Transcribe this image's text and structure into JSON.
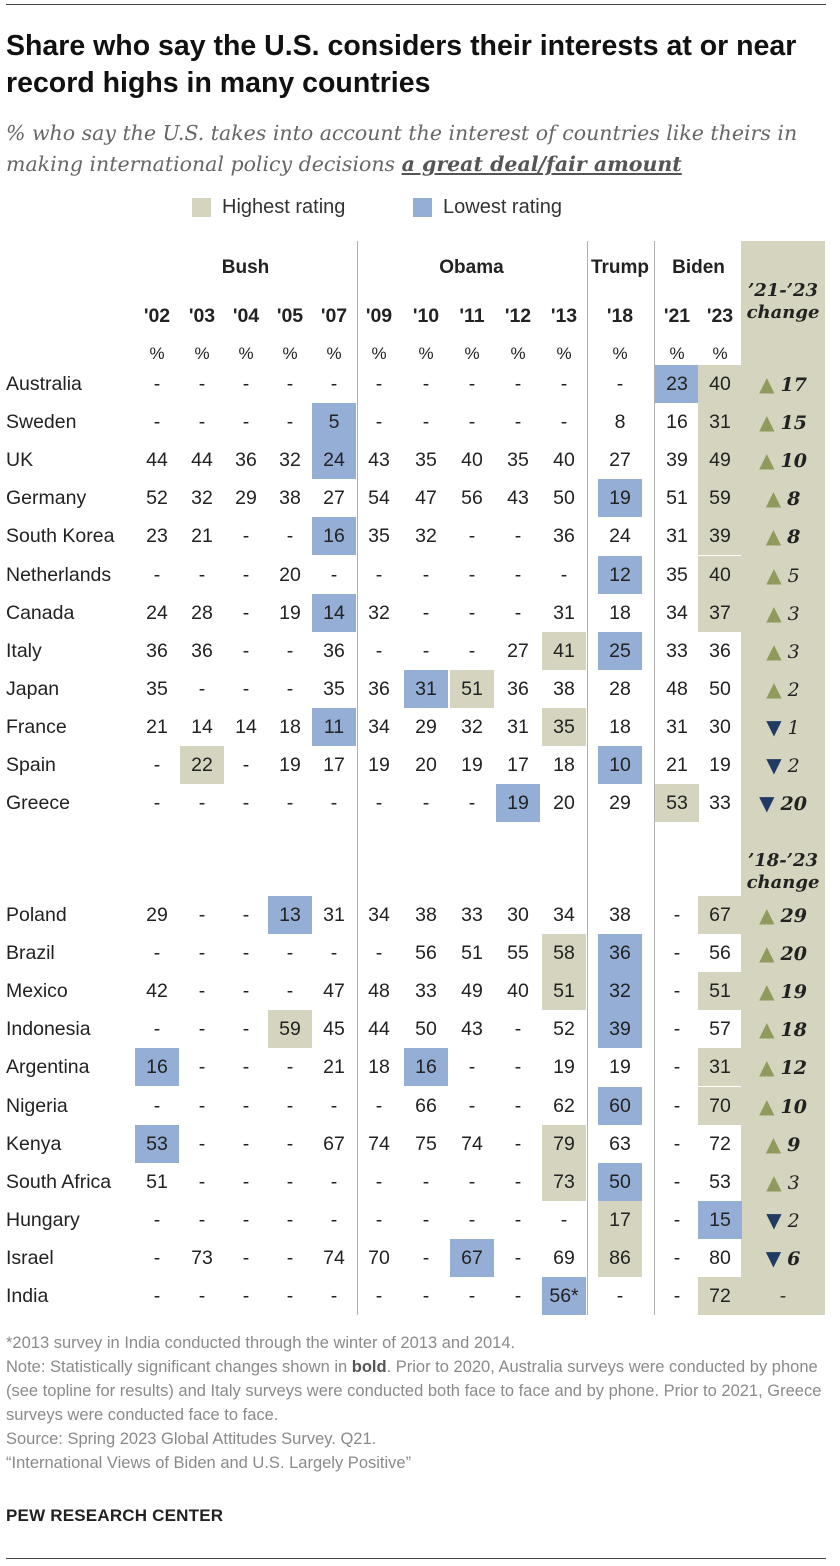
{
  "header": {
    "title": "Share who say the U.S. considers their interests at or near record highs in many countries",
    "subtitle_prefix": "% who say the U.S. takes into account the interest of countries like theirs in making international policy decisions ",
    "subtitle_emphasis": "a great deal/fair amount"
  },
  "legend": {
    "highest": "Highest rating",
    "lowest": "Lowest rating"
  },
  "colors": {
    "highest": "#d5d4bf",
    "lowest": "#94aed6",
    "change_column": "#d5d4bf",
    "triangle_up": "#8f9a5c",
    "triangle_down": "#1f3a63"
  },
  "chart_data": {
    "type": "table",
    "presidents": [
      {
        "name": "Bush",
        "years": [
          "'02",
          "'03",
          "'04",
          "'05",
          "'07"
        ]
      },
      {
        "name": "Obama",
        "years": [
          "'09",
          "'10",
          "'11",
          "'12",
          "'13"
        ]
      },
      {
        "name": "Trump",
        "years": [
          "'18"
        ]
      },
      {
        "name": "Biden",
        "years": [
          "'21",
          "'23"
        ]
      }
    ],
    "years": [
      "'02",
      "'03",
      "'04",
      "'05",
      "'07",
      "'09",
      "'10",
      "'11",
      "'12",
      "'13",
      "'18",
      "'21",
      "'23"
    ],
    "unit_label": "%",
    "change_headers": [
      "'21-'23 change",
      "'18-'23 change"
    ],
    "groups": [
      {
        "change_label": "'21-'23 change",
        "rows": [
          {
            "country": "Australia",
            "values": [
              "-",
              "-",
              "-",
              "-",
              "-",
              "-",
              "-",
              "-",
              "-",
              "-",
              "-",
              "23",
              "40"
            ],
            "highest": 12,
            "lowest": 11,
            "change": {
              "dir": "up",
              "value": "17",
              "significant": true
            }
          },
          {
            "country": "Sweden",
            "values": [
              "-",
              "-",
              "-",
              "-",
              "5",
              "-",
              "-",
              "-",
              "-",
              "-",
              "8",
              "16",
              "31"
            ],
            "highest": 12,
            "lowest": 4,
            "change": {
              "dir": "up",
              "value": "15",
              "significant": true
            }
          },
          {
            "country": "UK",
            "values": [
              "44",
              "44",
              "36",
              "32",
              "24",
              "43",
              "35",
              "40",
              "35",
              "40",
              "27",
              "39",
              "49"
            ],
            "highest": 12,
            "lowest": 4,
            "change": {
              "dir": "up",
              "value": "10",
              "significant": true
            }
          },
          {
            "country": "Germany",
            "values": [
              "52",
              "32",
              "29",
              "38",
              "27",
              "54",
              "47",
              "56",
              "43",
              "50",
              "19",
              "51",
              "59"
            ],
            "highest": 12,
            "lowest": 10,
            "change": {
              "dir": "up",
              "value": "8",
              "significant": true
            }
          },
          {
            "country": "South Korea",
            "values": [
              "23",
              "21",
              "-",
              "-",
              "16",
              "35",
              "32",
              "-",
              "-",
              "36",
              "24",
              "31",
              "39"
            ],
            "highest": 12,
            "lowest": 4,
            "change": {
              "dir": "up",
              "value": "8",
              "significant": true
            }
          },
          {
            "country": "Netherlands",
            "values": [
              "-",
              "-",
              "-",
              "20",
              "-",
              "-",
              "-",
              "-",
              "-",
              "-",
              "12",
              "35",
              "40"
            ],
            "highest": 12,
            "lowest": 10,
            "change": {
              "dir": "up",
              "value": "5",
              "significant": false
            }
          },
          {
            "country": "Canada",
            "values": [
              "24",
              "28",
              "-",
              "19",
              "14",
              "32",
              "-",
              "-",
              "-",
              "31",
              "18",
              "34",
              "37"
            ],
            "highest": 12,
            "lowest": 4,
            "change": {
              "dir": "up",
              "value": "3",
              "significant": false
            }
          },
          {
            "country": "Italy",
            "values": [
              "36",
              "36",
              "-",
              "-",
              "36",
              "-",
              "-",
              "-",
              "27",
              "41",
              "25",
              "33",
              "36"
            ],
            "highest": 9,
            "lowest": 10,
            "change": {
              "dir": "up",
              "value": "3",
              "significant": false
            }
          },
          {
            "country": "Japan",
            "values": [
              "35",
              "-",
              "-",
              "-",
              "35",
              "36",
              "31",
              "51",
              "36",
              "38",
              "28",
              "48",
              "50"
            ],
            "highest": 7,
            "lowest": 6,
            "change": {
              "dir": "up",
              "value": "2",
              "significant": false
            }
          },
          {
            "country": "France",
            "values": [
              "21",
              "14",
              "14",
              "18",
              "11",
              "34",
              "29",
              "32",
              "31",
              "35",
              "18",
              "31",
              "30"
            ],
            "highest": 9,
            "lowest": 4,
            "change": {
              "dir": "down",
              "value": "1",
              "significant": false
            }
          },
          {
            "country": "Spain",
            "values": [
              "-",
              "22",
              "-",
              "19",
              "17",
              "19",
              "20",
              "19",
              "17",
              "18",
              "10",
              "21",
              "19"
            ],
            "highest": 1,
            "lowest": 10,
            "change": {
              "dir": "down",
              "value": "2",
              "significant": false
            }
          },
          {
            "country": "Greece",
            "values": [
              "-",
              "-",
              "-",
              "-",
              "-",
              "-",
              "-",
              "-",
              "19",
              "20",
              "29",
              "53",
              "33"
            ],
            "highest": 11,
            "lowest": 8,
            "change": {
              "dir": "down",
              "value": "20",
              "significant": true
            }
          }
        ]
      },
      {
        "change_label": "'18-'23 change",
        "rows": [
          {
            "country": "Poland",
            "values": [
              "29",
              "-",
              "-",
              "13",
              "31",
              "34",
              "38",
              "33",
              "30",
              "34",
              "38",
              "-",
              "67"
            ],
            "highest": 12,
            "lowest": 3,
            "change": {
              "dir": "up",
              "value": "29",
              "significant": true
            }
          },
          {
            "country": "Brazil",
            "values": [
              "-",
              "-",
              "-",
              "-",
              "-",
              "-",
              "56",
              "51",
              "55",
              "58",
              "36",
              "-",
              "56"
            ],
            "highest": 9,
            "lowest": 10,
            "change": {
              "dir": "up",
              "value": "20",
              "significant": true
            }
          },
          {
            "country": "Mexico",
            "values": [
              "42",
              "-",
              "-",
              "-",
              "47",
              "48",
              "33",
              "49",
              "40",
              "51",
              "32",
              "-",
              "51"
            ],
            "highest": [
              9,
              12
            ],
            "lowest": 10,
            "change": {
              "dir": "up",
              "value": "19",
              "significant": true
            }
          },
          {
            "country": "Indonesia",
            "values": [
              "-",
              "-",
              "-",
              "59",
              "45",
              "44",
              "50",
              "43",
              "-",
              "52",
              "39",
              "-",
              "57"
            ],
            "highest": 3,
            "lowest": 10,
            "change": {
              "dir": "up",
              "value": "18",
              "significant": true
            }
          },
          {
            "country": "Argentina",
            "values": [
              "16",
              "-",
              "-",
              "-",
              "21",
              "18",
              "16",
              "-",
              "-",
              "19",
              "19",
              "-",
              "31"
            ],
            "highest": 12,
            "lowest": [
              0,
              6
            ],
            "change": {
              "dir": "up",
              "value": "12",
              "significant": true
            }
          },
          {
            "country": "Nigeria",
            "values": [
              "-",
              "-",
              "-",
              "-",
              "-",
              "-",
              "66",
              "-",
              "-",
              "62",
              "60",
              "-",
              "70"
            ],
            "highest": 12,
            "lowest": 10,
            "change": {
              "dir": "up",
              "value": "10",
              "significant": true
            }
          },
          {
            "country": "Kenya",
            "values": [
              "53",
              "-",
              "-",
              "-",
              "67",
              "74",
              "75",
              "74",
              "-",
              "79",
              "63",
              "-",
              "72"
            ],
            "highest": 9,
            "lowest": 0,
            "change": {
              "dir": "up",
              "value": "9",
              "significant": true
            }
          },
          {
            "country": "South Africa",
            "values": [
              "51",
              "-",
              "-",
              "-",
              "-",
              "-",
              "-",
              "-",
              "-",
              "73",
              "50",
              "-",
              "53"
            ],
            "highest": 9,
            "lowest": 10,
            "change": {
              "dir": "up",
              "value": "3",
              "significant": false
            }
          },
          {
            "country": "Hungary",
            "values": [
              "-",
              "-",
              "-",
              "-",
              "-",
              "-",
              "-",
              "-",
              "-",
              "-",
              "17",
              "-",
              "15"
            ],
            "highest": 10,
            "lowest": 12,
            "change": {
              "dir": "down",
              "value": "2",
              "significant": false
            }
          },
          {
            "country": "Israel",
            "values": [
              "-",
              "73",
              "-",
              "-",
              "74",
              "70",
              "-",
              "67",
              "-",
              "69",
              "86",
              "-",
              "80"
            ],
            "highest": 10,
            "lowest": 7,
            "change": {
              "dir": "down",
              "value": "6",
              "significant": true
            }
          },
          {
            "country": "India",
            "values": [
              "-",
              "-",
              "-",
              "-",
              "-",
              "-",
              "-",
              "-",
              "-",
              "56*",
              "-",
              "-",
              "72"
            ],
            "highest": 12,
            "lowest": 9,
            "change": {
              "dir": "none",
              "value": "-",
              "significant": false
            }
          }
        ]
      }
    ]
  },
  "notes": {
    "footnote": "*2013 survey in India conducted through the winter of 2013 and 2014.",
    "note_prefix": "Note: Statistically significant changes shown in ",
    "note_bold": "bold",
    "note_suffix": ". Prior to 2020, Australia surveys were conducted by phone (see topline for results) and Italy surveys were conducted both face to face and by phone. Prior to 2021, Greece surveys were conducted face to face.",
    "source": "Source: Spring 2023 Global Attitudes Survey. Q21.",
    "report": "“International Views of Biden and U.S. Largely Positive”"
  },
  "brand": "PEW RESEARCH CENTER"
}
